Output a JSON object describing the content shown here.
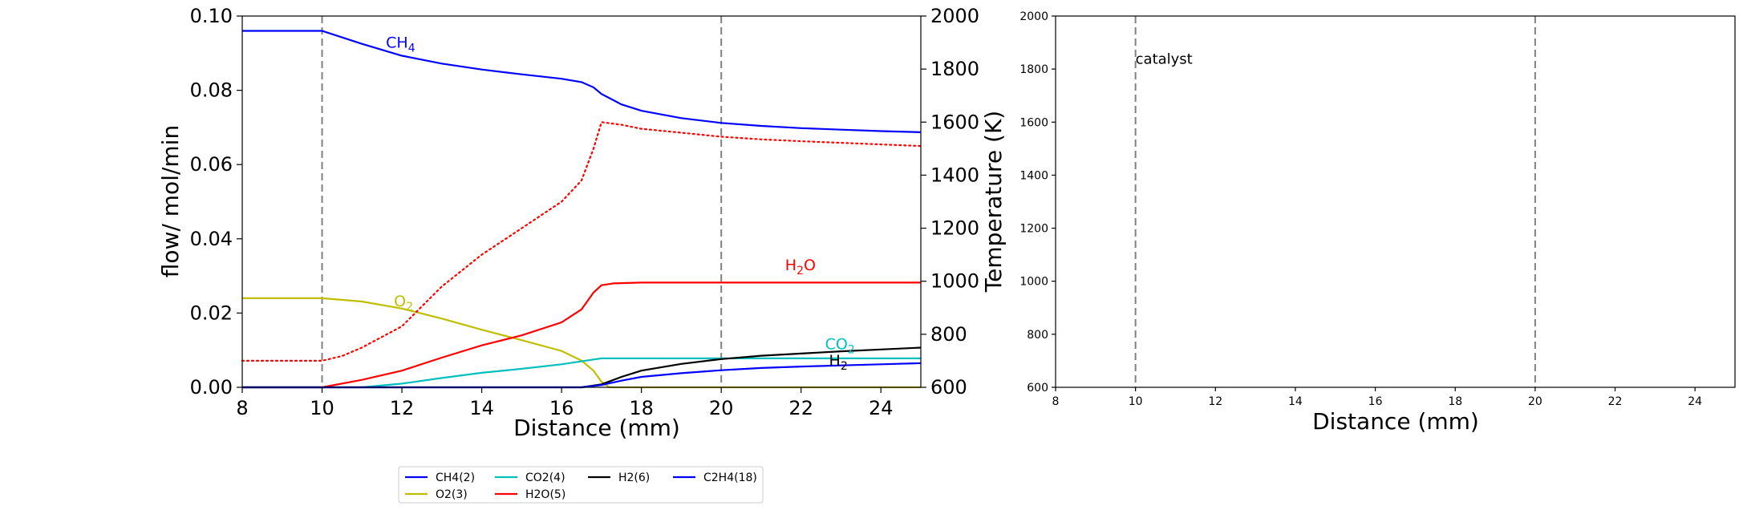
{
  "chart_data": [
    {
      "type": "line",
      "xlabel": "Distance (mm)",
      "ylabel": "flow/ mol/min",
      "y2label": "Temperature (K)",
      "xlim": [
        8,
        25
      ],
      "ylim": [
        0,
        0.1
      ],
      "y2lim": [
        600,
        2000
      ],
      "xticks": [
        "8",
        "10",
        "12",
        "14",
        "16",
        "18",
        "20",
        "22",
        "24"
      ],
      "yticks": [
        "0.00",
        "0.02",
        "0.04",
        "0.06",
        "0.08",
        "0.10"
      ],
      "y2ticks": [
        "600",
        "800",
        "1000",
        "1200",
        "1400",
        "1600",
        "1800",
        "2000"
      ],
      "vlines": [
        10,
        20
      ],
      "grid": false,
      "series": [
        {
          "name": "CH4(2)",
          "color": "#0000ff",
          "x": [
            8,
            10,
            11,
            12,
            13,
            14,
            15,
            16,
            16.5,
            16.8,
            17,
            17.5,
            18,
            19,
            20,
            21,
            22,
            23,
            24,
            25
          ],
          "values": [
            0.096,
            0.096,
            0.0925,
            0.0893,
            0.0872,
            0.0856,
            0.0843,
            0.0831,
            0.0822,
            0.0808,
            0.079,
            0.0762,
            0.0745,
            0.0725,
            0.0712,
            0.0704,
            0.0698,
            0.0694,
            0.069,
            0.0687
          ]
        },
        {
          "name": "O2(3)",
          "color": "#bfbf00",
          "x": [
            8,
            10,
            11,
            12,
            13,
            14,
            15,
            16,
            16.5,
            16.8,
            17,
            17.2,
            25
          ],
          "values": [
            0.024,
            0.024,
            0.0231,
            0.0212,
            0.0185,
            0.0155,
            0.0127,
            0.0098,
            0.0072,
            0.0045,
            0.0015,
            0,
            0
          ]
        },
        {
          "name": "CO2(4)",
          "color": "#00bfbf",
          "x": [
            8,
            11,
            12,
            13,
            14,
            15,
            16,
            16.8,
            17,
            18,
            20,
            22,
            25
          ],
          "values": [
            0,
            0,
            0.001,
            0.0025,
            0.0039,
            0.005,
            0.0062,
            0.0075,
            0.0078,
            0.0078,
            0.0078,
            0.0078,
            0.0078
          ]
        },
        {
          "name": "H2O(5)",
          "color": "#ff0000",
          "x": [
            8,
            10,
            11,
            12,
            13,
            14,
            15,
            16,
            16.5,
            16.8,
            17,
            17.3,
            18,
            20,
            22,
            25
          ],
          "values": [
            0,
            0,
            0.002,
            0.0045,
            0.008,
            0.0113,
            0.014,
            0.0175,
            0.021,
            0.0255,
            0.0275,
            0.028,
            0.0282,
            0.0282,
            0.0282,
            0.0282
          ]
        },
        {
          "name": "H2(6)",
          "color": "#000000",
          "x": [
            8,
            16.5,
            17,
            17.5,
            18,
            19,
            20,
            21,
            22,
            23,
            24,
            25
          ],
          "values": [
            0,
            0,
            0.0008,
            0.0028,
            0.0045,
            0.0063,
            0.0076,
            0.0085,
            0.0091,
            0.0097,
            0.0102,
            0.0107
          ]
        },
        {
          "name": "C2H4(18)",
          "color": "#0000ff",
          "x": [
            8,
            16.5,
            17,
            17.5,
            18,
            19,
            20,
            21,
            22,
            23,
            24,
            25
          ],
          "values": [
            0,
            0,
            0.0006,
            0.0018,
            0.0028,
            0.0038,
            0.0046,
            0.0052,
            0.0056,
            0.0059,
            0.0062,
            0.0065
          ]
        }
      ],
      "temperature": {
        "color": "#ff0000",
        "style": "dotted",
        "axis": "right",
        "x": [
          8,
          9,
          10,
          10.5,
          11,
          12,
          13,
          14,
          15,
          16,
          16.5,
          16.8,
          17,
          17.5,
          18,
          19,
          20,
          21,
          22,
          23,
          24,
          25
        ],
        "values": [
          700,
          700,
          700,
          718,
          750,
          830,
          980,
          1100,
          1200,
          1300,
          1380,
          1500,
          1600,
          1590,
          1575,
          1560,
          1545,
          1535,
          1528,
          1522,
          1516,
          1510
        ]
      },
      "annotations": [
        {
          "base": "CH",
          "sub": "4",
          "x": 11.6,
          "y": 0.0915,
          "color": "#0000ff"
        },
        {
          "base": "O",
          "sub": "2",
          "x": 11.8,
          "y": 0.0218,
          "color": "#bfbf00"
        },
        {
          "base": "H",
          "sub": "2",
          "tail": "O",
          "x": 21.6,
          "y": 0.0315,
          "color": "#ff0000"
        },
        {
          "base": "CO",
          "sub": "2",
          "x": 22.6,
          "y": 0.0103,
          "color": "#00bfbf"
        },
        {
          "base": "H",
          "sub": "2",
          "x": 22.7,
          "y": 0.0058,
          "color": "#000000"
        }
      ],
      "legend": {
        "placement": "bottom-center",
        "columns": [
          [
            "CH4(2)",
            "O2(3)"
          ],
          [
            "CO2(4)",
            "H2O(5)"
          ],
          [
            "H2(6)"
          ],
          [
            "C2H4(18)"
          ]
        ],
        "colors": {
          "CH4(2)": "#0000ff",
          "O2(3)": "#bfbf00",
          "CO2(4)": "#00bfbf",
          "H2O(5)": "#ff0000",
          "H2(6)": "#000000",
          "C2H4(18)": "#0000ff"
        }
      }
    },
    {
      "type": "line",
      "xlabel": "Distance (mm)",
      "ylabel": "",
      "xlim": [
        8,
        25
      ],
      "ylim": [
        600,
        2000
      ],
      "xticks": [
        "8",
        "10",
        "12",
        "14",
        "16",
        "18",
        "20",
        "22",
        "24"
      ],
      "yticks": [
        "600",
        "800",
        "1000",
        "1200",
        "1400",
        "1600",
        "1800",
        "2000"
      ],
      "vlines": [
        10,
        20
      ],
      "grid": false,
      "series": [],
      "annotations": [
        {
          "text": "catalyst",
          "x": 10,
          "y": 1820
        }
      ]
    }
  ]
}
